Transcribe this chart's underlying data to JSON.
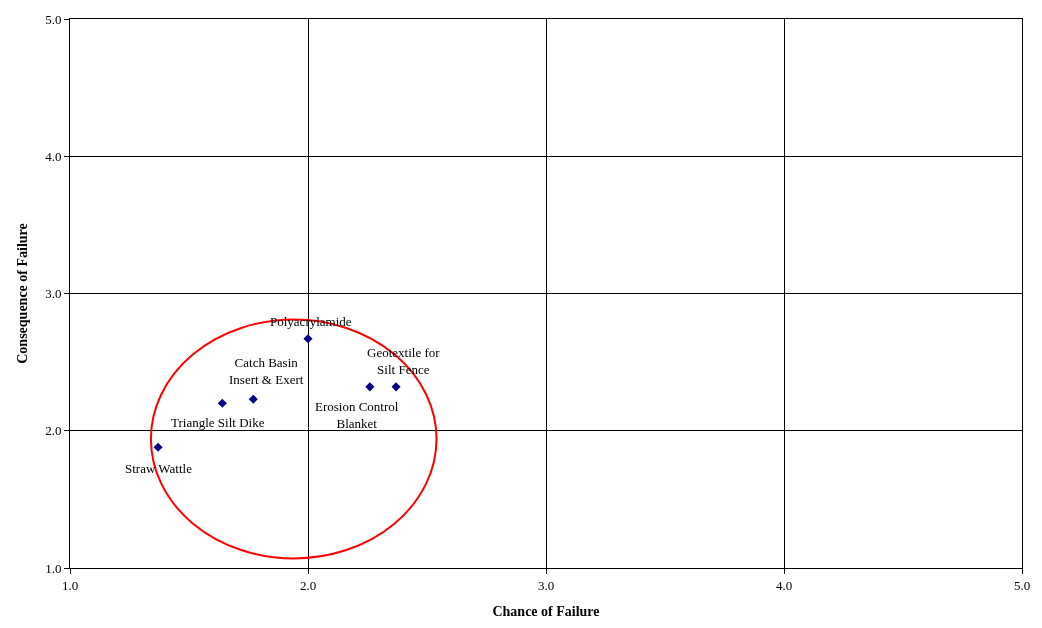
{
  "chart_data": {
    "type": "scatter",
    "xlabel": "Chance of Failure",
    "ylabel": "Consequence of Failure",
    "x": [
      1.37,
      1.64,
      1.77,
      2.0,
      2.26,
      2.37
    ],
    "series": [
      {
        "color": "#000080",
        "values": [
          1.88,
          2.2,
          2.23,
          2.67,
          2.32,
          2.32
        ]
      }
    ],
    "marker": "diamond",
    "grid": true,
    "xlim": [
      1,
      5
    ],
    "xticks": [
      {
        "value": 1,
        "label": "1.0"
      },
      {
        "value": 2,
        "label": "2.0"
      },
      {
        "value": 3,
        "label": "3.0"
      },
      {
        "value": 4,
        "label": "4.0"
      },
      {
        "value": 5,
        "label": "5.0"
      }
    ],
    "ylim": [
      1,
      5
    ],
    "yticks": [
      {
        "value": 1,
        "label": "1.0"
      },
      {
        "value": 2,
        "label": "2.0"
      },
      {
        "value": 3,
        "label": "3.0"
      },
      {
        "value": 4,
        "label": "4.0"
      },
      {
        "value": 5,
        "label": "5.0"
      }
    ],
    "annotations": [
      {
        "text": "Straw Wattle",
        "x": 1.37,
        "y": 1.88
      },
      {
        "text": "Triangle Silt Dike",
        "x": 1.64,
        "y": 2.2
      },
      {
        "text": "Catch Basin\nInsert & Exert",
        "x": 1.77,
        "y": 2.23
      },
      {
        "text": "Polyacrylamide",
        "x": 2.0,
        "y": 2.67
      },
      {
        "text": "Erosion Control\nBlanket",
        "x": 2.26,
        "y": 2.32
      },
      {
        "text": "Geotextile for\nSilt Fence",
        "x": 2.37,
        "y": 2.32
      }
    ]
  }
}
